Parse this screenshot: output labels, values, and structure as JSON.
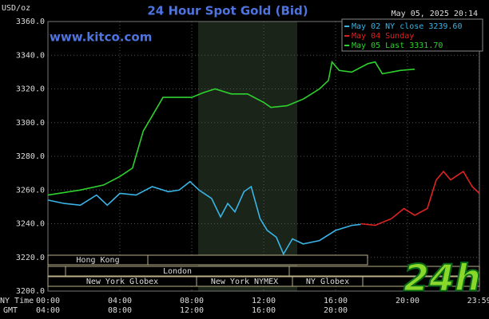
{
  "chart_data": {
    "type": "line",
    "title": "24 Hour Spot Gold (Bid)",
    "timestamp": "May 05, 2025 20:14",
    "y_label": "USD/oz",
    "source": "www.kitco.com",
    "watermark": "24h",
    "x_label": "NY Time",
    "x2_label": "GMT",
    "xlim": [
      0,
      24
    ],
    "ylim": [
      3200,
      3360
    ],
    "xticks": [
      {
        "value": 0,
        "label": "00:00"
      },
      {
        "value": 4,
        "label": "04:00"
      },
      {
        "value": 8,
        "label": "08:00"
      },
      {
        "value": 12,
        "label": "12:00"
      },
      {
        "value": 16,
        "label": "16:00"
      },
      {
        "value": 20,
        "label": "20:00"
      },
      {
        "value": 23.983,
        "label": "23:59"
      }
    ],
    "gmt_ticks": [
      "04:00",
      "08:00",
      "12:00",
      "16:00",
      "20:00"
    ],
    "yticks": [
      {
        "value": 3200,
        "label": "3200.0"
      },
      {
        "value": 3220,
        "label": "3220.0"
      },
      {
        "value": 3240,
        "label": "3240.0"
      },
      {
        "value": 3260,
        "label": "3260.0"
      },
      {
        "value": 3280,
        "label": "3280.0"
      },
      {
        "value": 3300,
        "label": "3300.0"
      },
      {
        "value": 3320,
        "label": "3320.0"
      },
      {
        "value": 3340,
        "label": "3340.0"
      },
      {
        "value": 3360,
        "label": "3360.0"
      }
    ],
    "grid": true,
    "sessions": [
      "Hong Kong",
      "London",
      "New York Globex",
      "New York NYMEX",
      "NY Globex"
    ],
    "series": [
      {
        "name": "May 02 NY close 3239.60",
        "color": "#3ab4e6",
        "x": [
          0,
          0.9,
          1.8,
          2.7,
          3.3,
          4,
          4.9,
          5.8,
          6.7,
          7.3,
          7.9,
          8.4,
          9.1,
          9.6,
          10,
          10.4,
          10.9,
          11.3,
          11.8,
          12.2,
          12.7,
          13.1,
          13.6,
          14.2,
          15.1,
          16,
          16.9,
          17.4
        ],
        "values": [
          3254,
          3252,
          3251,
          3257,
          3251,
          3258,
          3257,
          3262,
          3259,
          3260,
          3265,
          3260,
          3255,
          3244,
          3252,
          3247,
          3259,
          3262,
          3243,
          3236,
          3232,
          3222,
          3231,
          3228,
          3230,
          3236,
          3239,
          3239.6
        ]
      },
      {
        "name": "May 04 Sunday",
        "color": "#e02424",
        "x": [
          17.4,
          18.2,
          19.1,
          19.8,
          20.4,
          21.1,
          21.6,
          22,
          22.4,
          23.1,
          23.6,
          24
        ],
        "values": [
          3240,
          3239,
          3243,
          3249,
          3245,
          3249,
          3266,
          3271,
          3266,
          3271,
          3262,
          3258
        ]
      },
      {
        "name": "May 05 Last 3331.70",
        "color": "#2ed22e",
        "x": [
          0,
          1.8,
          3.1,
          4,
          4.7,
          5.3,
          5.8,
          6.4,
          8,
          8.7,
          9.3,
          10.2,
          11.1,
          12,
          12.4,
          13.3,
          14.2,
          15.1,
          15.6,
          15.8,
          16.2,
          16.9,
          17.8,
          18.2,
          18.6,
          19.6,
          20.4
        ],
        "values": [
          3257,
          3260,
          3263,
          3268,
          3273,
          3295,
          3304,
          3315,
          3315,
          3318,
          3320,
          3317,
          3317,
          3312,
          3309,
          3310,
          3314,
          3320,
          3325,
          3336,
          3331,
          3330,
          3335,
          3336,
          3329,
          3331,
          3331.7
        ]
      }
    ]
  }
}
